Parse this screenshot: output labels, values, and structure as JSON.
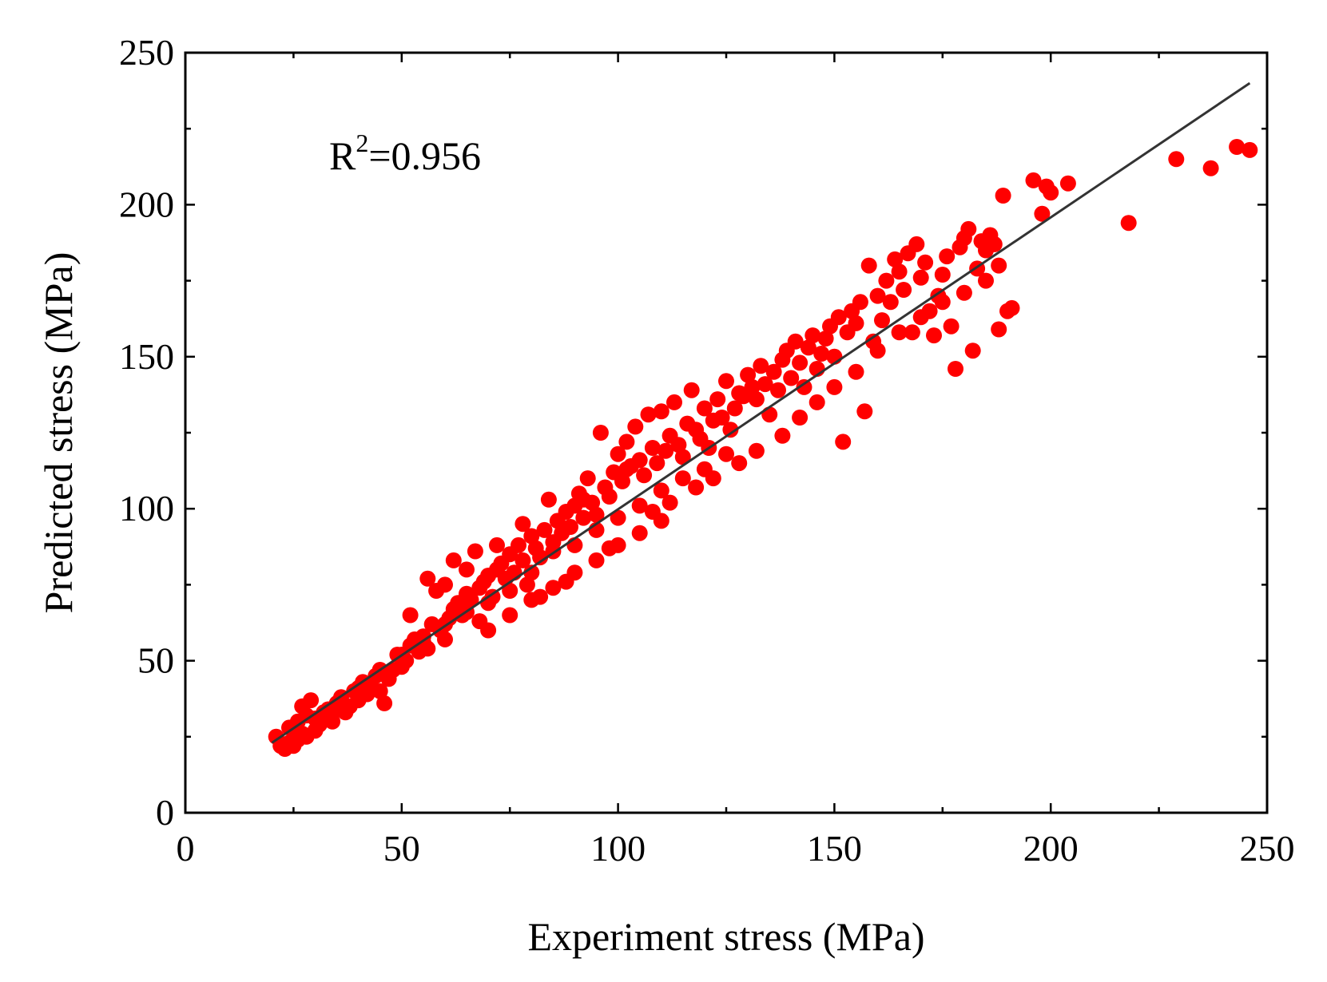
{
  "chart_data": {
    "type": "scatter",
    "title": "",
    "xlabel": "Experiment stress (MPa)",
    "ylabel": "Predicted stress (MPa)",
    "xlim": [
      0,
      250
    ],
    "ylim": [
      0,
      250
    ],
    "xticks": [
      0,
      50,
      100,
      150,
      200,
      250
    ],
    "yticks": [
      0,
      50,
      100,
      150,
      200,
      250
    ],
    "xtick_labels": [
      "0",
      "50",
      "100",
      "150",
      "200",
      "250"
    ],
    "ytick_labels": [
      "0",
      "50",
      "100",
      "150",
      "200",
      "250"
    ],
    "minor_tick_step": 25,
    "grid": false,
    "legend": "none",
    "annotation": {
      "base": "R",
      "sup": "2",
      "rest": "=0.956",
      "position": "top-left"
    },
    "fit_line": {
      "name": "fit",
      "x": [
        20,
        246
      ],
      "y": [
        23,
        240
      ],
      "color": "#333333"
    },
    "series": [
      {
        "name": "predictions",
        "color": "#ff0000",
        "points": [
          [
            21,
            25
          ],
          [
            22,
            22
          ],
          [
            23,
            21
          ],
          [
            24,
            23
          ],
          [
            25,
            22
          ],
          [
            26,
            24
          ],
          [
            27,
            26
          ],
          [
            28,
            25
          ],
          [
            24,
            28
          ],
          [
            26,
            30
          ],
          [
            27,
            35
          ],
          [
            28,
            32
          ],
          [
            29,
            37
          ],
          [
            30,
            31
          ],
          [
            31,
            29
          ],
          [
            32,
            33
          ],
          [
            33,
            34
          ],
          [
            34,
            30
          ],
          [
            35,
            36
          ],
          [
            36,
            38
          ],
          [
            37,
            33
          ],
          [
            38,
            35
          ],
          [
            39,
            40
          ],
          [
            40,
            37
          ],
          [
            41,
            43
          ],
          [
            42,
            39
          ],
          [
            43,
            41
          ],
          [
            44,
            45
          ],
          [
            45,
            40
          ],
          [
            46,
            36
          ],
          [
            47,
            44
          ],
          [
            48,
            47
          ],
          [
            49,
            52
          ],
          [
            50,
            48
          ],
          [
            51,
            50
          ],
          [
            52,
            55
          ],
          [
            53,
            57
          ],
          [
            54,
            53
          ],
          [
            55,
            58
          ],
          [
            56,
            54
          ],
          [
            57,
            62
          ],
          [
            58,
            73
          ],
          [
            59,
            60
          ],
          [
            60,
            57
          ],
          [
            61,
            64
          ],
          [
            62,
            67
          ],
          [
            63,
            69
          ],
          [
            64,
            65
          ],
          [
            65,
            72
          ],
          [
            66,
            70
          ],
          [
            67,
            86
          ],
          [
            68,
            74
          ],
          [
            69,
            76
          ],
          [
            70,
            78
          ],
          [
            71,
            71
          ],
          [
            72,
            80
          ],
          [
            73,
            82
          ],
          [
            74,
            77
          ],
          [
            75,
            85
          ],
          [
            76,
            79
          ],
          [
            77,
            88
          ],
          [
            78,
            83
          ],
          [
            79,
            75
          ],
          [
            80,
            91
          ],
          [
            81,
            87
          ],
          [
            82,
            84
          ],
          [
            83,
            93
          ],
          [
            84,
            103
          ],
          [
            85,
            89
          ],
          [
            86,
            96
          ],
          [
            87,
            92
          ],
          [
            88,
            99
          ],
          [
            89,
            94
          ],
          [
            90,
            101
          ],
          [
            91,
            105
          ],
          [
            92,
            97
          ],
          [
            93,
            110
          ],
          [
            94,
            102
          ],
          [
            95,
            98
          ],
          [
            96,
            125
          ],
          [
            97,
            107
          ],
          [
            98,
            104
          ],
          [
            99,
            112
          ],
          [
            100,
            118
          ],
          [
            101,
            109
          ],
          [
            102,
            122
          ],
          [
            103,
            114
          ],
          [
            104,
            127
          ],
          [
            105,
            116
          ],
          [
            106,
            111
          ],
          [
            107,
            131
          ],
          [
            108,
            120
          ],
          [
            109,
            115
          ],
          [
            110,
            132
          ],
          [
            111,
            119
          ],
          [
            112,
            124
          ],
          [
            113,
            135
          ],
          [
            114,
            121
          ],
          [
            115,
            117
          ],
          [
            116,
            128
          ],
          [
            117,
            139
          ],
          [
            118,
            126
          ],
          [
            119,
            123
          ],
          [
            120,
            133
          ],
          [
            121,
            120
          ],
          [
            122,
            129
          ],
          [
            123,
            136
          ],
          [
            124,
            130
          ],
          [
            125,
            142
          ],
          [
            126,
            126
          ],
          [
            127,
            133
          ],
          [
            128,
            138
          ],
          [
            129,
            137
          ],
          [
            130,
            144
          ],
          [
            131,
            140
          ],
          [
            132,
            136
          ],
          [
            133,
            147
          ],
          [
            134,
            141
          ],
          [
            135,
            131
          ],
          [
            136,
            145
          ],
          [
            137,
            139
          ],
          [
            138,
            149
          ],
          [
            139,
            152
          ],
          [
            140,
            143
          ],
          [
            141,
            155
          ],
          [
            142,
            148
          ],
          [
            143,
            140
          ],
          [
            144,
            153
          ],
          [
            145,
            157
          ],
          [
            146,
            146
          ],
          [
            147,
            151
          ],
          [
            148,
            156
          ],
          [
            149,
            160
          ],
          [
            150,
            150
          ],
          [
            151,
            163
          ],
          [
            152,
            122
          ],
          [
            153,
            158
          ],
          [
            154,
            165
          ],
          [
            155,
            161
          ],
          [
            156,
            168
          ],
          [
            157,
            132
          ],
          [
            158,
            180
          ],
          [
            159,
            155
          ],
          [
            160,
            170
          ],
          [
            161,
            162
          ],
          [
            162,
            175
          ],
          [
            163,
            168
          ],
          [
            164,
            182
          ],
          [
            165,
            178
          ],
          [
            166,
            172
          ],
          [
            167,
            184
          ],
          [
            168,
            158
          ],
          [
            169,
            187
          ],
          [
            170,
            176
          ],
          [
            171,
            181
          ],
          [
            172,
            165
          ],
          [
            173,
            157
          ],
          [
            174,
            170
          ],
          [
            175,
            177
          ],
          [
            176,
            183
          ],
          [
            177,
            160
          ],
          [
            178,
            146
          ],
          [
            179,
            186
          ],
          [
            180,
            189
          ],
          [
            181,
            192
          ],
          [
            182,
            152
          ],
          [
            183,
            179
          ],
          [
            184,
            188
          ],
          [
            185,
            185
          ],
          [
            186,
            190
          ],
          [
            187,
            187
          ],
          [
            188,
            159
          ],
          [
            189,
            203
          ],
          [
            190,
            165
          ],
          [
            191,
            166
          ],
          [
            196,
            208
          ],
          [
            198,
            197
          ],
          [
            199,
            206
          ],
          [
            200,
            204
          ],
          [
            204,
            207
          ],
          [
            218,
            194
          ],
          [
            229,
            215
          ],
          [
            237,
            212
          ],
          [
            243,
            219
          ],
          [
            246,
            218
          ],
          [
            30,
            27
          ],
          [
            35,
            34
          ],
          [
            40,
            41
          ],
          [
            45,
            47
          ],
          [
            50,
            52
          ],
          [
            55,
            56
          ],
          [
            60,
            62
          ],
          [
            65,
            66
          ],
          [
            70,
            69
          ],
          [
            75,
            73
          ],
          [
            80,
            79
          ],
          [
            85,
            86
          ],
          [
            90,
            88
          ],
          [
            95,
            93
          ],
          [
            100,
            97
          ],
          [
            105,
            101
          ],
          [
            110,
            106
          ],
          [
            115,
            110
          ],
          [
            120,
            113
          ],
          [
            125,
            118
          ],
          [
            60,
            75
          ],
          [
            65,
            80
          ],
          [
            70,
            60
          ],
          [
            75,
            65
          ],
          [
            80,
            70
          ],
          [
            85,
            74
          ],
          [
            90,
            79
          ],
          [
            95,
            83
          ],
          [
            100,
            88
          ],
          [
            105,
            92
          ],
          [
            110,
            96
          ],
          [
            52,
            65
          ],
          [
            56,
            77
          ],
          [
            62,
            83
          ],
          [
            68,
            63
          ],
          [
            72,
            88
          ],
          [
            78,
            95
          ],
          [
            82,
            71
          ],
          [
            88,
            76
          ],
          [
            92,
            103
          ],
          [
            98,
            87
          ],
          [
            102,
            113
          ],
          [
            108,
            99
          ],
          [
            112,
            102
          ],
          [
            118,
            107
          ],
          [
            122,
            110
          ],
          [
            128,
            115
          ],
          [
            132,
            119
          ],
          [
            138,
            124
          ],
          [
            142,
            130
          ],
          [
            146,
            135
          ],
          [
            150,
            140
          ],
          [
            155,
            145
          ],
          [
            160,
            152
          ],
          [
            165,
            158
          ],
          [
            170,
            163
          ],
          [
            175,
            168
          ],
          [
            180,
            171
          ],
          [
            185,
            175
          ],
          [
            188,
            180
          ]
        ]
      }
    ]
  }
}
